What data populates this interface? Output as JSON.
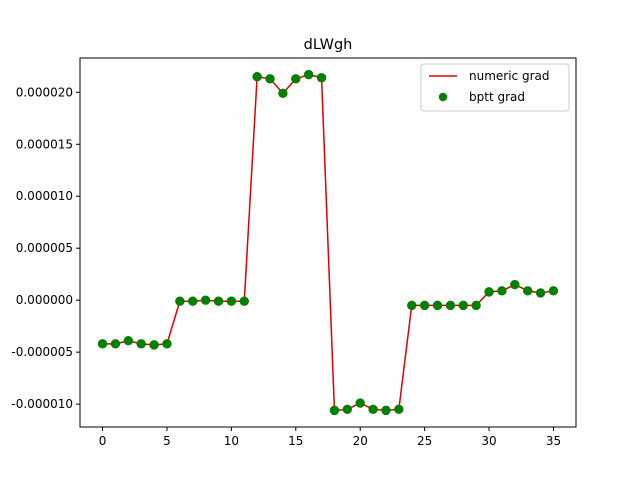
{
  "chart_data": {
    "type": "line",
    "title": "dLWgh",
    "xlabel": "",
    "ylabel": "",
    "xlim": [
      -1.75,
      36.75
    ],
    "ylim": [
      -1.22e-05,
      2.33e-05
    ],
    "xticks": [
      0,
      5,
      10,
      15,
      20,
      25,
      30,
      35
    ],
    "xtick_labels": [
      "0",
      "5",
      "10",
      "15",
      "20",
      "25",
      "30",
      "35"
    ],
    "yticks": [
      -1e-05,
      -5e-06,
      0,
      5e-06,
      1e-05,
      1.5e-05,
      2e-05
    ],
    "ytick_labels": [
      "-0.000010",
      "-0.000005",
      "0.000000",
      "0.000005",
      "0.000010",
      "0.000015",
      "0.000020"
    ],
    "grid": false,
    "legend_position": "top-right",
    "x": [
      0,
      1,
      2,
      3,
      4,
      5,
      6,
      7,
      8,
      9,
      10,
      11,
      12,
      13,
      14,
      15,
      16,
      17,
      18,
      19,
      20,
      21,
      22,
      23,
      24,
      25,
      26,
      27,
      28,
      29,
      30,
      31,
      32,
      33,
      34,
      35
    ],
    "series": [
      {
        "name": "numeric grad",
        "style": "line",
        "color": "#dd0000",
        "values": [
          -4.2e-06,
          -4.2e-06,
          -3.9e-06,
          -4.2e-06,
          -4.3e-06,
          -4.2e-06,
          -1e-07,
          -1e-07,
          0.0,
          -1e-07,
          -1e-07,
          -1e-07,
          2.15e-05,
          2.13e-05,
          1.99e-05,
          2.13e-05,
          2.17e-05,
          2.14e-05,
          -1.06e-05,
          -1.05e-05,
          -9.9e-06,
          -1.05e-05,
          -1.06e-05,
          -1.05e-05,
          -5e-07,
          -5e-07,
          -5e-07,
          -5e-07,
          -5e-07,
          -5e-07,
          8e-07,
          9e-07,
          1.5e-06,
          9e-07,
          7e-07,
          9e-07
        ]
      },
      {
        "name": "bptt grad",
        "style": "markers",
        "color": "#008000",
        "values": [
          -4.2e-06,
          -4.2e-06,
          -3.9e-06,
          -4.2e-06,
          -4.3e-06,
          -4.2e-06,
          -1e-07,
          -1e-07,
          0.0,
          -1e-07,
          -1e-07,
          -1e-07,
          2.15e-05,
          2.13e-05,
          1.99e-05,
          2.13e-05,
          2.17e-05,
          2.14e-05,
          -1.06e-05,
          -1.05e-05,
          -9.9e-06,
          -1.05e-05,
          -1.06e-05,
          -1.05e-05,
          -5e-07,
          -5e-07,
          -5e-07,
          -5e-07,
          -5e-07,
          -5e-07,
          8e-07,
          9e-07,
          1.5e-06,
          9e-07,
          7e-07,
          9e-07
        ]
      }
    ]
  }
}
